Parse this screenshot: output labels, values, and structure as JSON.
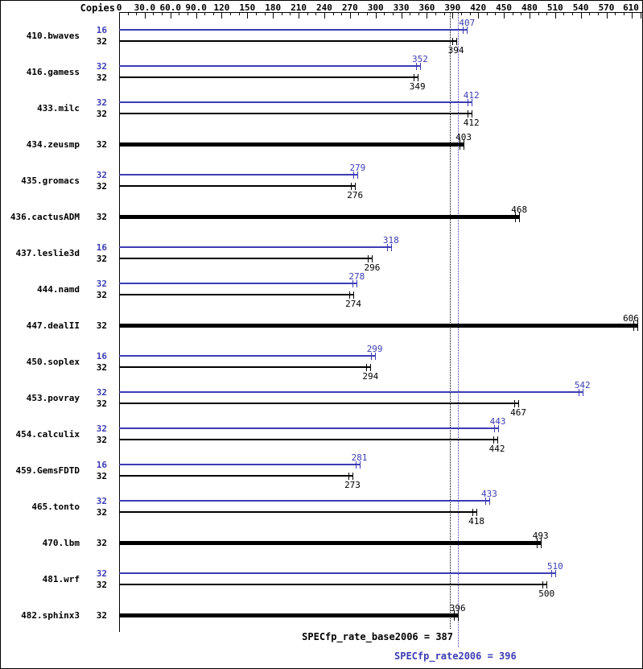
{
  "copies_header": "Copies",
  "colors": {
    "peak_blue": "#3c3cb4",
    "base_black": "#000000"
  },
  "axis": {
    "max_value": 610,
    "major_step": 30,
    "minor_step": 10,
    "tick_labels": [
      "0",
      "30.0",
      "60.0",
      "90.0",
      "120",
      "150",
      "180",
      "210",
      "240",
      "270",
      "300",
      "330",
      "360",
      "390",
      "420",
      "450",
      "480",
      "510",
      "540",
      "570",
      "610"
    ]
  },
  "chart_data": {
    "type": "bar",
    "orientation": "horizontal",
    "xlim": [
      0,
      610
    ],
    "copies_column_header": "Copies",
    "benchmarks": [
      {
        "name": "410.bwaves",
        "bars": [
          {
            "series": "peak",
            "copies": 16,
            "value": 407
          },
          {
            "series": "base",
            "copies": 32,
            "value": 394
          }
        ]
      },
      {
        "name": "416.gamess",
        "bars": [
          {
            "series": "peak",
            "copies": 32,
            "value": 352
          },
          {
            "series": "base",
            "copies": 32,
            "value": 349
          }
        ]
      },
      {
        "name": "433.milc",
        "bars": [
          {
            "series": "peak",
            "copies": 32,
            "value": 412
          },
          {
            "series": "base",
            "copies": 32,
            "value": 412
          }
        ]
      },
      {
        "name": "434.zeusmp",
        "bars": [
          {
            "series": "base",
            "copies": 32,
            "value": 403
          }
        ]
      },
      {
        "name": "435.gromacs",
        "bars": [
          {
            "series": "peak",
            "copies": 32,
            "value": 279
          },
          {
            "series": "base",
            "copies": 32,
            "value": 276
          }
        ]
      },
      {
        "name": "436.cactusADM",
        "bars": [
          {
            "series": "base",
            "copies": 32,
            "value": 468
          }
        ]
      },
      {
        "name": "437.leslie3d",
        "bars": [
          {
            "series": "peak",
            "copies": 16,
            "value": 318
          },
          {
            "series": "base",
            "copies": 32,
            "value": 296
          }
        ]
      },
      {
        "name": "444.namd",
        "bars": [
          {
            "series": "peak",
            "copies": 32,
            "value": 278
          },
          {
            "series": "base",
            "copies": 32,
            "value": 274
          }
        ]
      },
      {
        "name": "447.dealII",
        "bars": [
          {
            "series": "base",
            "copies": 32,
            "value": 606
          }
        ]
      },
      {
        "name": "450.soplex",
        "bars": [
          {
            "series": "peak",
            "copies": 16,
            "value": 299
          },
          {
            "series": "base",
            "copies": 32,
            "value": 294
          }
        ]
      },
      {
        "name": "453.povray",
        "bars": [
          {
            "series": "peak",
            "copies": 32,
            "value": 542
          },
          {
            "series": "base",
            "copies": 32,
            "value": 467
          }
        ]
      },
      {
        "name": "454.calculix",
        "bars": [
          {
            "series": "peak",
            "copies": 32,
            "value": 443
          },
          {
            "series": "base",
            "copies": 32,
            "value": 442
          }
        ]
      },
      {
        "name": "459.GemsFDTD",
        "bars": [
          {
            "series": "peak",
            "copies": 16,
            "value": 281
          },
          {
            "series": "base",
            "copies": 32,
            "value": 273
          }
        ]
      },
      {
        "name": "465.tonto",
        "bars": [
          {
            "series": "peak",
            "copies": 32,
            "value": 433
          },
          {
            "series": "base",
            "copies": 32,
            "value": 418
          }
        ]
      },
      {
        "name": "470.lbm",
        "bars": [
          {
            "series": "base",
            "copies": 32,
            "value": 493
          }
        ]
      },
      {
        "name": "481.wrf",
        "bars": [
          {
            "series": "peak",
            "copies": 32,
            "value": 510
          },
          {
            "series": "base",
            "copies": 32,
            "value": 500
          }
        ]
      },
      {
        "name": "482.sphinx3",
        "bars": [
          {
            "series": "base",
            "copies": 32,
            "value": 396
          }
        ]
      }
    ]
  },
  "footer": {
    "base_metric_label": "SPECfp_rate_base2006 = 387",
    "peak_metric_label": "SPECfp_rate2006 = 396",
    "base_metric_value": 387,
    "peak_metric_value": 396
  }
}
